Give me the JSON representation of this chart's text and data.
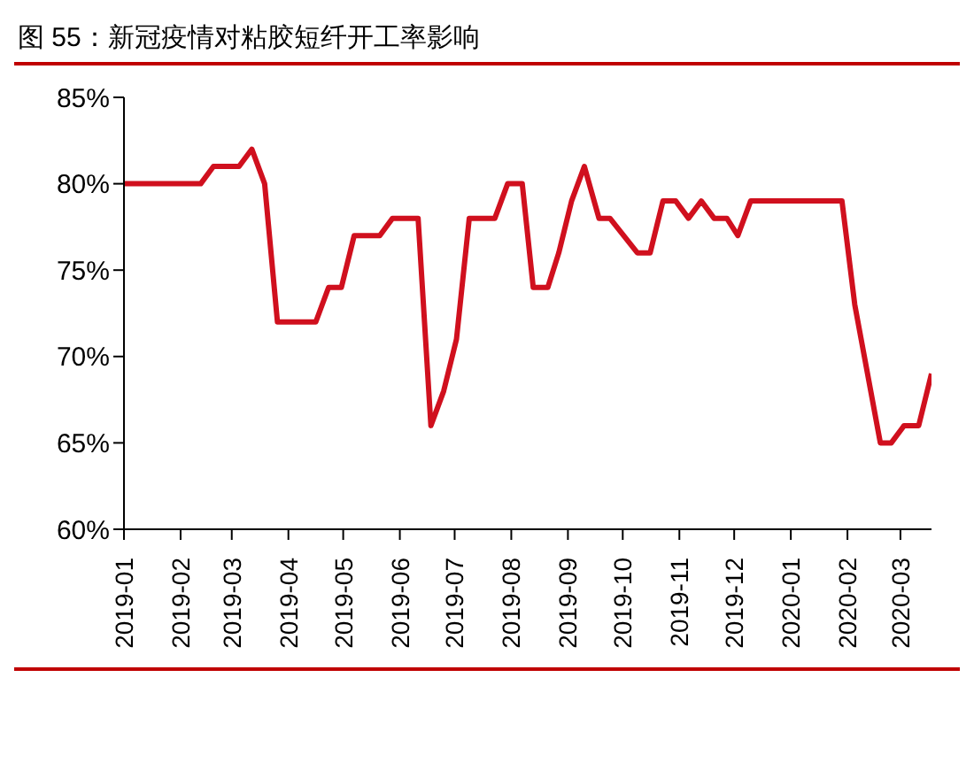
{
  "chart_data": {
    "type": "line",
    "title": "图 55：新冠疫情对粘胶短纤开工率影响",
    "x": [
      "2019-01-01",
      "2019-02-12",
      "2019-02-19",
      "2019-03-05",
      "2019-03-12",
      "2019-03-19",
      "2019-03-26",
      "2019-04-16",
      "2019-04-23",
      "2019-04-30",
      "2019-05-07",
      "2019-05-21",
      "2019-05-28",
      "2019-06-11",
      "2019-06-18",
      "2019-06-25",
      "2019-07-02",
      "2019-07-09",
      "2019-07-23",
      "2019-07-30",
      "2019-08-07",
      "2019-08-13",
      "2019-08-21",
      "2019-08-27",
      "2019-09-03",
      "2019-09-10",
      "2019-09-18",
      "2019-09-24",
      "2019-10-09",
      "2019-10-16",
      "2019-10-23",
      "2019-10-30",
      "2019-11-06",
      "2019-11-13",
      "2019-11-20",
      "2019-11-27",
      "2019-12-03",
      "2019-12-10",
      "2020-01-29",
      "2020-02-05",
      "2020-02-19",
      "2020-02-25",
      "2020-03-03",
      "2020-03-11",
      "2020-03-18"
    ],
    "series": [
      {
        "color": "#d0101e",
        "values": [
          80,
          80,
          81,
          81,
          82,
          80,
          72,
          72,
          74,
          74,
          77,
          77,
          78,
          78,
          66,
          68,
          71,
          78,
          78,
          80,
          80,
          74,
          74,
          76,
          79,
          81,
          78,
          78,
          76,
          76,
          79,
          79,
          78,
          79,
          78,
          78,
          77,
          79,
          79,
          73,
          65,
          65,
          66,
          66,
          69
        ]
      }
    ],
    "xlim": [
      "2019-01-01",
      "2020-03-18"
    ],
    "xticks": [
      "2019-01",
      "2019-02",
      "2019-03",
      "2019-04",
      "2019-05",
      "2019-06",
      "2019-07",
      "2019-08",
      "2019-09",
      "2019-10",
      "2019-11",
      "2019-12",
      "2020-01",
      "2020-02",
      "2020-03"
    ],
    "ylim": [
      60,
      85
    ],
    "yticks": [
      {
        "value": 60,
        "label": "60%"
      },
      {
        "value": 65,
        "label": "65%"
      },
      {
        "value": 70,
        "label": "70%"
      },
      {
        "value": 75,
        "label": "75%"
      },
      {
        "value": 80,
        "label": "80%"
      },
      {
        "value": 85,
        "label": "85%"
      }
    ],
    "grid": false,
    "legend": false,
    "marker": "none",
    "line_style": "solid"
  }
}
